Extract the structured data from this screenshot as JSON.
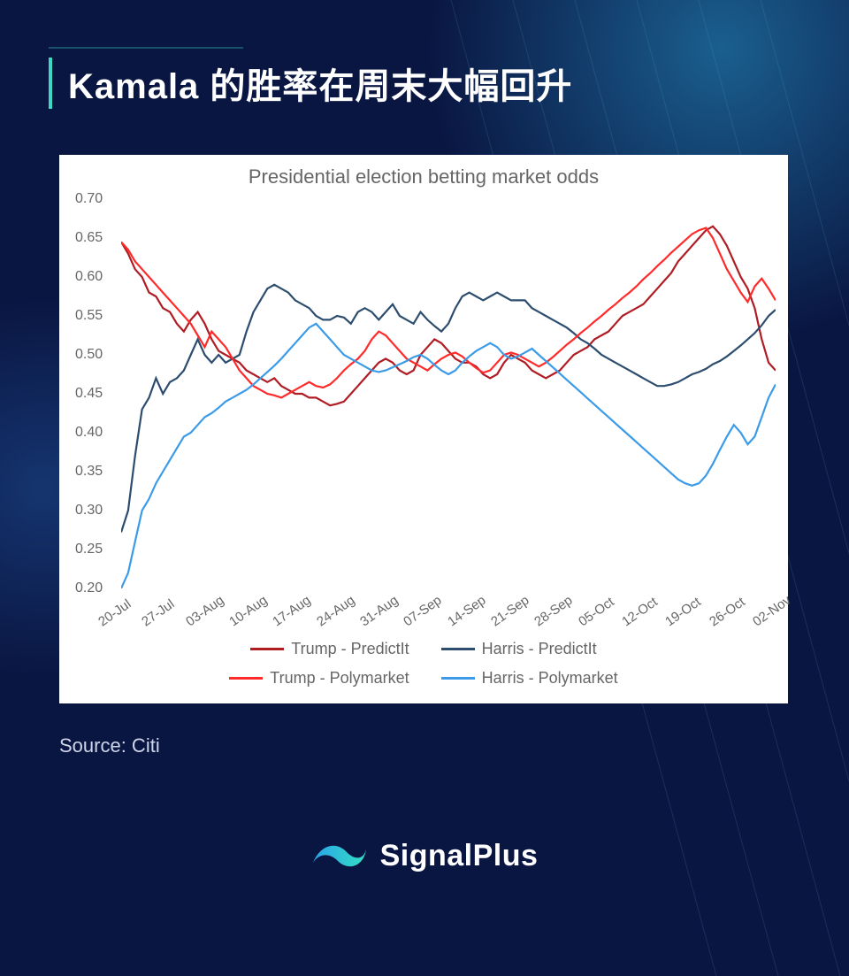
{
  "title": "Kamala 的胜率在周末大幅回升",
  "source_label": "Source: Citi",
  "brand": "SignalPlus",
  "brand_colors": {
    "left": "#2aa3e8",
    "right": "#35e0c3"
  },
  "chart": {
    "type": "line",
    "title": "Presidential election betting market odds",
    "title_fontsize": 22,
    "title_color": "#666666",
    "background_color": "#ffffff",
    "label_fontsize": 16,
    "label_color": "#666666",
    "ylim": [
      0.2,
      0.7
    ],
    "ytick_step": 0.05,
    "yticks": [
      0.2,
      0.25,
      0.3,
      0.35,
      0.4,
      0.45,
      0.5,
      0.55,
      0.6,
      0.65,
      0.7
    ],
    "x_labels": [
      "20-Jul",
      "27-Jul",
      "03-Aug",
      "10-Aug",
      "17-Aug",
      "24-Aug",
      "31-Aug",
      "07-Sep",
      "14-Sep",
      "21-Sep",
      "28-Sep",
      "05-Oct",
      "12-Oct",
      "19-Oct",
      "26-Oct",
      "02-Nov"
    ],
    "x_label_rotation": -35,
    "line_width": 2.2,
    "series": [
      {
        "name": "Trump - PredictIt",
        "color": "#b01c23",
        "values": [
          0.645,
          0.63,
          0.61,
          0.6,
          0.58,
          0.575,
          0.56,
          0.555,
          0.54,
          0.53,
          0.545,
          0.555,
          0.54,
          0.52,
          0.505,
          0.5,
          0.495,
          0.49,
          0.48,
          0.475,
          0.47,
          0.465,
          0.47,
          0.46,
          0.455,
          0.45,
          0.45,
          0.445,
          0.445,
          0.44,
          0.435,
          0.437,
          0.44,
          0.45,
          0.46,
          0.47,
          0.48,
          0.49,
          0.495,
          0.49,
          0.48,
          0.475,
          0.48,
          0.5,
          0.51,
          0.52,
          0.515,
          0.505,
          0.495,
          0.49,
          0.49,
          0.485,
          0.475,
          0.47,
          0.475,
          0.49,
          0.5,
          0.495,
          0.49,
          0.48,
          0.475,
          0.47,
          0.475,
          0.48,
          0.49,
          0.5,
          0.505,
          0.51,
          0.52,
          0.525,
          0.53,
          0.54,
          0.55,
          0.555,
          0.56,
          0.565,
          0.575,
          0.585,
          0.595,
          0.605,
          0.62,
          0.63,
          0.64,
          0.65,
          0.66,
          0.665,
          0.655,
          0.64,
          0.62,
          0.6,
          0.585,
          0.56,
          0.52,
          0.49,
          0.48
        ]
      },
      {
        "name": "Harris - PredictIt",
        "color": "#2d4d6f",
        "values": [
          0.272,
          0.3,
          0.37,
          0.43,
          0.445,
          0.47,
          0.45,
          0.465,
          0.47,
          0.48,
          0.5,
          0.52,
          0.5,
          0.49,
          0.5,
          0.49,
          0.495,
          0.5,
          0.53,
          0.555,
          0.57,
          0.585,
          0.59,
          0.585,
          0.58,
          0.57,
          0.565,
          0.56,
          0.55,
          0.545,
          0.545,
          0.55,
          0.548,
          0.54,
          0.555,
          0.56,
          0.555,
          0.545,
          0.555,
          0.565,
          0.55,
          0.545,
          0.54,
          0.555,
          0.545,
          0.537,
          0.53,
          0.54,
          0.56,
          0.575,
          0.58,
          0.575,
          0.57,
          0.575,
          0.58,
          0.575,
          0.57,
          0.57,
          0.57,
          0.56,
          0.555,
          0.55,
          0.545,
          0.54,
          0.535,
          0.528,
          0.52,
          0.515,
          0.508,
          0.5,
          0.495,
          0.49,
          0.485,
          0.48,
          0.475,
          0.47,
          0.465,
          0.46,
          0.46,
          0.462,
          0.465,
          0.47,
          0.475,
          0.478,
          0.482,
          0.488,
          0.492,
          0.498,
          0.505,
          0.512,
          0.52,
          0.528,
          0.538,
          0.55,
          0.558
        ]
      },
      {
        "name": "Trump - Polymarket",
        "color": "#ff2a2a",
        "values": [
          0.645,
          0.635,
          0.62,
          0.61,
          0.6,
          0.59,
          0.58,
          0.57,
          0.56,
          0.55,
          0.54,
          0.525,
          0.51,
          0.53,
          0.52,
          0.51,
          0.495,
          0.48,
          0.47,
          0.46,
          0.455,
          0.45,
          0.448,
          0.445,
          0.45,
          0.455,
          0.46,
          0.465,
          0.46,
          0.458,
          0.462,
          0.47,
          0.48,
          0.488,
          0.495,
          0.505,
          0.52,
          0.53,
          0.525,
          0.515,
          0.505,
          0.495,
          0.49,
          0.485,
          0.48,
          0.488,
          0.495,
          0.5,
          0.503,
          0.498,
          0.49,
          0.483,
          0.477,
          0.48,
          0.49,
          0.5,
          0.503,
          0.5,
          0.495,
          0.49,
          0.485,
          0.49,
          0.497,
          0.505,
          0.513,
          0.52,
          0.528,
          0.535,
          0.543,
          0.55,
          0.558,
          0.565,
          0.573,
          0.58,
          0.588,
          0.597,
          0.605,
          0.614,
          0.622,
          0.631,
          0.639,
          0.647,
          0.655,
          0.66,
          0.663,
          0.65,
          0.63,
          0.61,
          0.595,
          0.58,
          0.568,
          0.588,
          0.598,
          0.585,
          0.57
        ]
      },
      {
        "name": "Harris - Polymarket",
        "color": "#3b9be8",
        "values": [
          0.2,
          0.22,
          0.26,
          0.3,
          0.315,
          0.335,
          0.35,
          0.365,
          0.38,
          0.395,
          0.4,
          0.41,
          0.42,
          0.425,
          0.432,
          0.44,
          0.445,
          0.45,
          0.455,
          0.462,
          0.47,
          0.478,
          0.486,
          0.495,
          0.505,
          0.515,
          0.525,
          0.535,
          0.54,
          0.53,
          0.52,
          0.51,
          0.5,
          0.495,
          0.49,
          0.485,
          0.48,
          0.478,
          0.48,
          0.484,
          0.488,
          0.492,
          0.497,
          0.5,
          0.495,
          0.487,
          0.48,
          0.475,
          0.48,
          0.49,
          0.498,
          0.505,
          0.51,
          0.515,
          0.51,
          0.5,
          0.495,
          0.498,
          0.503,
          0.508,
          0.5,
          0.492,
          0.484,
          0.476,
          0.468,
          0.46,
          0.452,
          0.444,
          0.436,
          0.428,
          0.42,
          0.412,
          0.404,
          0.396,
          0.388,
          0.38,
          0.372,
          0.364,
          0.356,
          0.348,
          0.34,
          0.335,
          0.332,
          0.335,
          0.345,
          0.36,
          0.378,
          0.395,
          0.41,
          0.4,
          0.385,
          0.395,
          0.42,
          0.445,
          0.462
        ]
      }
    ],
    "legend_position": "bottom",
    "legend_fontsize": 18
  }
}
